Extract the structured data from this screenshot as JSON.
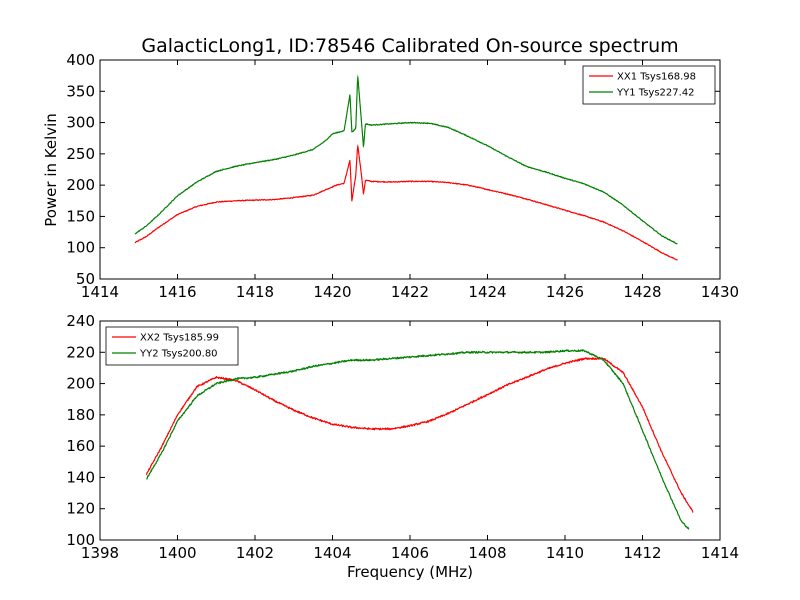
{
  "figure": {
    "title": "GalacticLong1, ID:78546 Calibrated On-source spectrum",
    "ylabel": "Power in Kelvin",
    "xlabel": "Frequency (MHz)"
  },
  "colors": {
    "red": "#ff0000",
    "green": "#008000"
  },
  "chart_data": [
    {
      "type": "line",
      "xlim": [
        1414,
        1430
      ],
      "ylim": [
        50,
        400
      ],
      "xticks": [
        1414,
        1416,
        1418,
        1420,
        1422,
        1424,
        1426,
        1428,
        1430
      ],
      "yticks": [
        50,
        100,
        150,
        200,
        250,
        300,
        350,
        400
      ],
      "legend_position": "top-right",
      "grid": false,
      "series": [
        {
          "name": "XX1 Tsys168.98",
          "color": "#ff0000",
          "points": [
            [
              1414.9,
              108
            ],
            [
              1415.2,
              118
            ],
            [
              1415.5,
              132
            ],
            [
              1416.0,
              153
            ],
            [
              1416.5,
              166
            ],
            [
              1417.0,
              173
            ],
            [
              1417.5,
              175
            ],
            [
              1418.0,
              176
            ],
            [
              1418.5,
              177
            ],
            [
              1419.0,
              180
            ],
            [
              1419.5,
              184
            ],
            [
              1419.8,
              192
            ],
            [
              1420.1,
              200
            ],
            [
              1420.3,
              203
            ],
            [
              1420.45,
              240
            ],
            [
              1420.5,
              175
            ],
            [
              1420.6,
              215
            ],
            [
              1420.65,
              265
            ],
            [
              1420.75,
              215
            ],
            [
              1420.8,
              185
            ],
            [
              1420.85,
              208
            ],
            [
              1421.0,
              206
            ],
            [
              1421.5,
              205
            ],
            [
              1422.0,
              206
            ],
            [
              1422.5,
              206
            ],
            [
              1423.0,
              204
            ],
            [
              1423.5,
              200
            ],
            [
              1424.0,
              193
            ],
            [
              1424.5,
              186
            ],
            [
              1425.0,
              178
            ],
            [
              1425.5,
              169
            ],
            [
              1426.0,
              160
            ],
            [
              1426.5,
              151
            ],
            [
              1427.0,
              141
            ],
            [
              1427.5,
              127
            ],
            [
              1428.0,
              110
            ],
            [
              1428.5,
              92
            ],
            [
              1428.9,
              80
            ]
          ]
        },
        {
          "name": "YY1 Tsys227.42",
          "color": "#008000",
          "points": [
            [
              1414.9,
              122
            ],
            [
              1415.2,
              135
            ],
            [
              1415.5,
              152
            ],
            [
              1416.0,
              183
            ],
            [
              1416.5,
              205
            ],
            [
              1417.0,
              222
            ],
            [
              1417.5,
              230
            ],
            [
              1418.0,
              236
            ],
            [
              1418.5,
              241
            ],
            [
              1419.0,
              248
            ],
            [
              1419.5,
              257
            ],
            [
              1419.8,
              270
            ],
            [
              1420.0,
              282
            ],
            [
              1420.3,
              287
            ],
            [
              1420.45,
              345
            ],
            [
              1420.5,
              285
            ],
            [
              1420.6,
              290
            ],
            [
              1420.65,
              376
            ],
            [
              1420.75,
              300
            ],
            [
              1420.8,
              260
            ],
            [
              1420.85,
              298
            ],
            [
              1421.0,
              296
            ],
            [
              1421.5,
              298
            ],
            [
              1422.0,
              300
            ],
            [
              1422.5,
              299
            ],
            [
              1423.0,
              292
            ],
            [
              1423.5,
              278
            ],
            [
              1424.0,
              263
            ],
            [
              1424.5,
              246
            ],
            [
              1425.0,
              230
            ],
            [
              1425.5,
              221
            ],
            [
              1426.0,
              211
            ],
            [
              1426.5,
              202
            ],
            [
              1427.0,
              189
            ],
            [
              1427.5,
              168
            ],
            [
              1428.0,
              143
            ],
            [
              1428.5,
              119
            ],
            [
              1428.9,
              106
            ]
          ]
        }
      ]
    },
    {
      "type": "line",
      "xlim": [
        1398,
        1414
      ],
      "ylim": [
        100,
        240
      ],
      "xticks": [
        1398,
        1400,
        1402,
        1404,
        1406,
        1408,
        1410,
        1412,
        1414
      ],
      "yticks": [
        100,
        120,
        140,
        160,
        180,
        200,
        220,
        240
      ],
      "legend_position": "top-left",
      "grid": false,
      "series": [
        {
          "name": "XX2 Tsys185.99",
          "color": "#ff0000",
          "points": [
            [
              1399.2,
              142
            ],
            [
              1399.6,
              160
            ],
            [
              1400.0,
              180
            ],
            [
              1400.5,
              198
            ],
            [
              1401.0,
              204
            ],
            [
              1401.5,
              202
            ],
            [
              1402.0,
              196
            ],
            [
              1402.5,
              189
            ],
            [
              1403.0,
              183
            ],
            [
              1403.5,
              178
            ],
            [
              1404.0,
              174
            ],
            [
              1404.5,
              172
            ],
            [
              1405.0,
              171
            ],
            [
              1405.5,
              171
            ],
            [
              1406.0,
              173
            ],
            [
              1406.5,
              176
            ],
            [
              1407.0,
              181
            ],
            [
              1407.5,
              187
            ],
            [
              1408.0,
              193
            ],
            [
              1408.5,
              199
            ],
            [
              1409.0,
              204
            ],
            [
              1409.5,
              209
            ],
            [
              1410.0,
              213
            ],
            [
              1410.5,
              216
            ],
            [
              1411.0,
              216
            ],
            [
              1411.5,
              207
            ],
            [
              1412.0,
              185
            ],
            [
              1412.5,
              156
            ],
            [
              1413.0,
              130
            ],
            [
              1413.3,
              118
            ]
          ]
        },
        {
          "name": "YY2 Tsys200.80",
          "color": "#008000",
          "points": [
            [
              1399.2,
              139
            ],
            [
              1399.6,
              156
            ],
            [
              1400.0,
              176
            ],
            [
              1400.5,
              192
            ],
            [
              1401.0,
              200
            ],
            [
              1401.5,
              203
            ],
            [
              1402.0,
              204
            ],
            [
              1402.5,
              206
            ],
            [
              1403.0,
              208
            ],
            [
              1403.5,
              211
            ],
            [
              1404.0,
              213
            ],
            [
              1404.5,
              215
            ],
            [
              1405.0,
              215
            ],
            [
              1405.5,
              216
            ],
            [
              1406.0,
              217
            ],
            [
              1406.5,
              218
            ],
            [
              1407.0,
              219
            ],
            [
              1407.5,
              220
            ],
            [
              1408.0,
              220
            ],
            [
              1408.5,
              220
            ],
            [
              1409.0,
              220
            ],
            [
              1409.5,
              220
            ],
            [
              1410.0,
              221
            ],
            [
              1410.5,
              221
            ],
            [
              1411.0,
              215
            ],
            [
              1411.5,
              200
            ],
            [
              1412.0,
              170
            ],
            [
              1412.5,
              140
            ],
            [
              1413.0,
              112
            ],
            [
              1413.2,
              107
            ]
          ]
        }
      ]
    }
  ]
}
